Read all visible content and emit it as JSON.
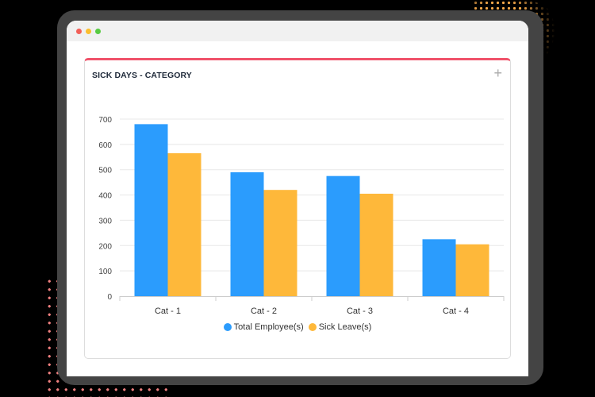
{
  "window": {
    "traffic_lights": [
      {
        "name": "close",
        "color": "#f25f58"
      },
      {
        "name": "minimize",
        "color": "#fbbe2e"
      },
      {
        "name": "maximize",
        "color": "#58cb42"
      }
    ]
  },
  "card": {
    "title": "SICK DAYS - CATEGORY",
    "action_icon": "plus-icon",
    "action_glyph": "+",
    "accent_color": "#f0526a"
  },
  "legend": [
    {
      "label": "Total Employee(s)",
      "color": "#2b9cfd"
    },
    {
      "label": "Sick Leave(s)",
      "color": "#feb83a"
    }
  ],
  "chart_data": {
    "type": "bar",
    "title": "SICK DAYS - CATEGORY",
    "categories": [
      "Cat - 1",
      "Cat - 2",
      "Cat - 3",
      "Cat - 4"
    ],
    "series": [
      {
        "name": "Total Employee(s)",
        "color": "#2b9cfd",
        "values": [
          680,
          490,
          475,
          225
        ]
      },
      {
        "name": "Sick Leave(s)",
        "color": "#feb83a",
        "values": [
          565,
          420,
          405,
          205
        ]
      }
    ],
    "xlabel": "",
    "ylabel": "",
    "ylim": [
      0,
      700
    ],
    "yticks": [
      0,
      100,
      200,
      300,
      400,
      500,
      600,
      700
    ],
    "grid": true,
    "legend_position": "bottom"
  }
}
